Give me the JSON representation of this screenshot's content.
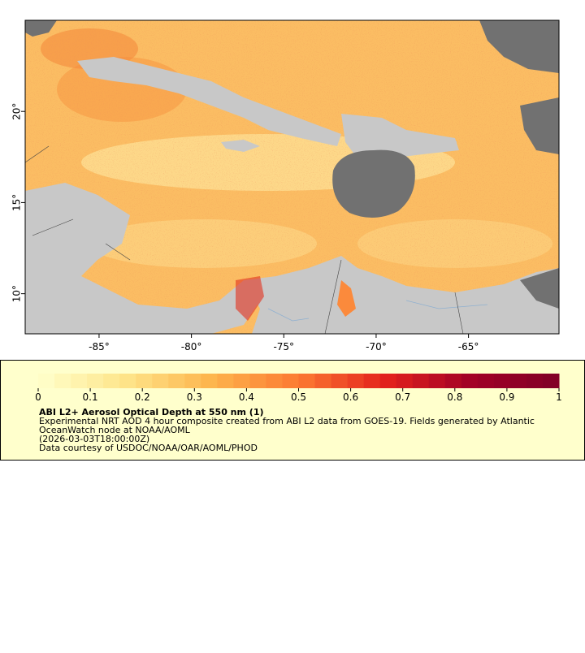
{
  "map": {
    "xlim": [
      -89,
      -60.1
    ],
    "ylim": [
      7.8,
      25
    ],
    "xticks": [
      {
        "value": -85,
        "label": "-85°"
      },
      {
        "value": -80,
        "label": "-80°"
      },
      {
        "value": -75,
        "label": "-75°"
      },
      {
        "value": -70,
        "label": "-70°"
      },
      {
        "value": -65,
        "label": "-65°"
      }
    ],
    "yticks": [
      {
        "value": 10,
        "label": "10°"
      },
      {
        "value": 15,
        "label": "15°"
      },
      {
        "value": 20,
        "label": "20°"
      }
    ]
  },
  "colorbar": {
    "range": [
      0,
      1
    ],
    "ticks": [
      0,
      0.1,
      0.2,
      0.3,
      0.4,
      0.5,
      0.6,
      0.7,
      0.8,
      0.9,
      1
    ],
    "colors": [
      "#ffffcc",
      "#fee58a",
      "#fdb44c",
      "#fc7a32",
      "#e3211c",
      "#a10026",
      "#800026"
    ],
    "title": "ABI L2+ Aerosol Optical Depth at 550 nm (1)",
    "description": [
      "Experimental NRT AOD 4 hour composite created from ABI L2 data from GOES-19. Fields generated by Atlantic",
      "OceanWatch node at NOAA/AOML"
    ],
    "time": "(2026-03-03T18:00:00Z)",
    "credit": "Data courtesy of USDOC/NOAA/OAR/AOML/PHOD"
  }
}
